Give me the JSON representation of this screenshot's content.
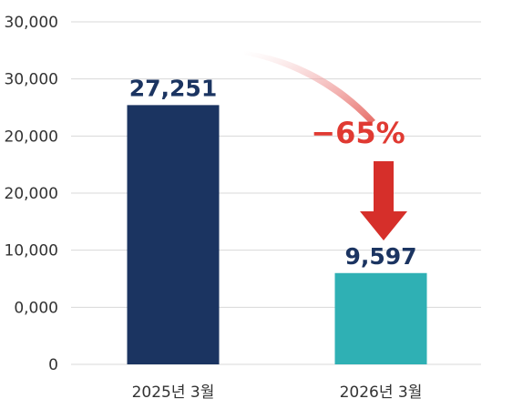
{
  "chart_data": {
    "type": "bar",
    "categories": [
      "2025년 3월",
      "2026년 3월"
    ],
    "values": [
      27251,
      9597
    ],
    "value_labels": [
      "27,251",
      "9,597"
    ],
    "y_tick_labels": [
      "0",
      "0,000",
      "10,000",
      "20,000",
      "20,000",
      "30,000",
      "30,000"
    ],
    "ylim": [
      0,
      30000
    ],
    "grid": true,
    "legend": "none",
    "title": "",
    "xlabel": "",
    "ylabel": "",
    "annotation": {
      "text": "−65%",
      "color": "#e03a32"
    },
    "colors": {
      "bars": [
        "#1b3461",
        "#2fb0b4"
      ],
      "value_labels": "#1b3461",
      "arrow": "#d62f2a"
    }
  }
}
